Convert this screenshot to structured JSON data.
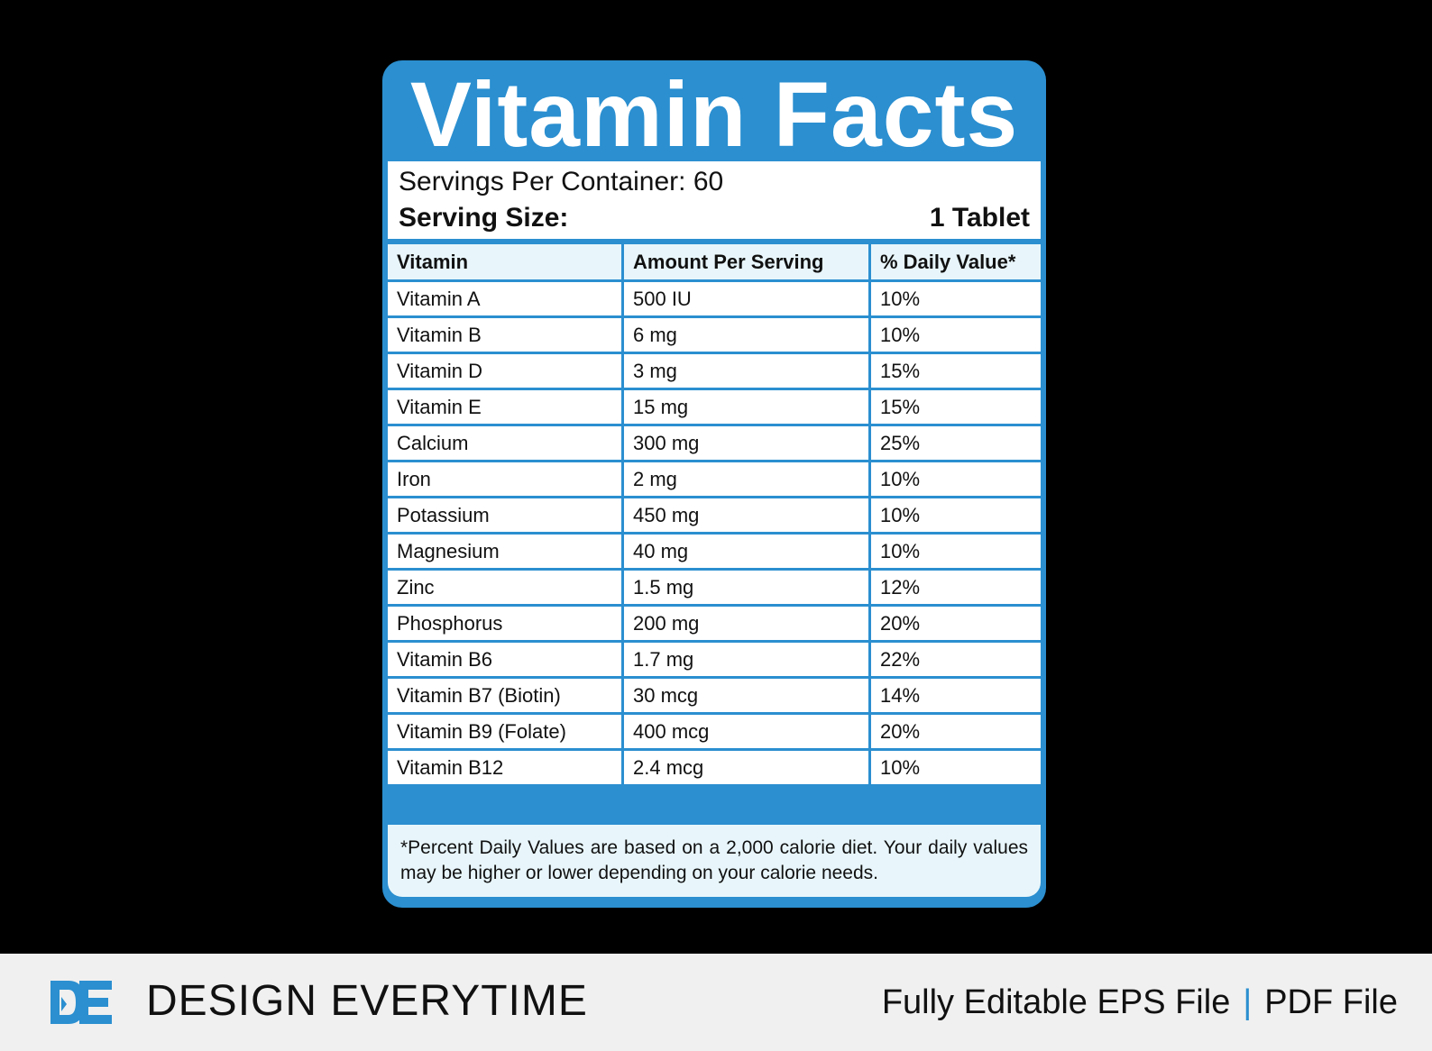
{
  "label": {
    "title": "Vitamin Facts",
    "servings_per_container": "Servings Per Container: 60",
    "serving_size_label": "Serving Size:",
    "serving_size_value": "1 Tablet",
    "columns": [
      "Vitamin",
      "Amount Per Serving",
      "% Daily Value*"
    ],
    "rows": [
      [
        "Vitamin A",
        "500 IU",
        "10%"
      ],
      [
        "Vitamin B",
        "6 mg",
        "10%"
      ],
      [
        "Vitamin D",
        "3 mg",
        "15%"
      ],
      [
        "Vitamin E",
        "15 mg",
        "15%"
      ],
      [
        "Calcium",
        "300 mg",
        "25%"
      ],
      [
        "Iron",
        "2 mg",
        "10%"
      ],
      [
        "Potassium",
        "450 mg",
        "10%"
      ],
      [
        "Magnesium",
        "40 mg",
        "10%"
      ],
      [
        "Zinc",
        "1.5 mg",
        "12%"
      ],
      [
        "Phosphorus",
        "200 mg",
        "20%"
      ],
      [
        "Vitamin B6",
        "1.7 mg",
        "22%"
      ],
      [
        "Vitamin B7 (Biotin)",
        "30 mcg",
        "14%"
      ],
      [
        "Vitamin B9 (Folate)",
        "400 mcg",
        "20%"
      ],
      [
        "Vitamin B12",
        "2.4 mcg",
        "10%"
      ]
    ],
    "footnote": "*Percent Daily Values are based on a 2,000 calorie diet. Your daily values may be higher or lower depending on your calorie needs."
  },
  "banner": {
    "brand": "DESIGN EVERYTIME",
    "file_type_1": "Fully Editable EPS File",
    "separator": "|",
    "file_type_2": "PDF File",
    "logo_icon": "de-monogram-logo"
  },
  "watermark": "DESIGN EVERYTIME",
  "colors": {
    "accent_blue": "#2b8fd0",
    "header_tint": "#e8f6fb",
    "background": "#000000",
    "banner_bg": "#f0f0f0"
  }
}
